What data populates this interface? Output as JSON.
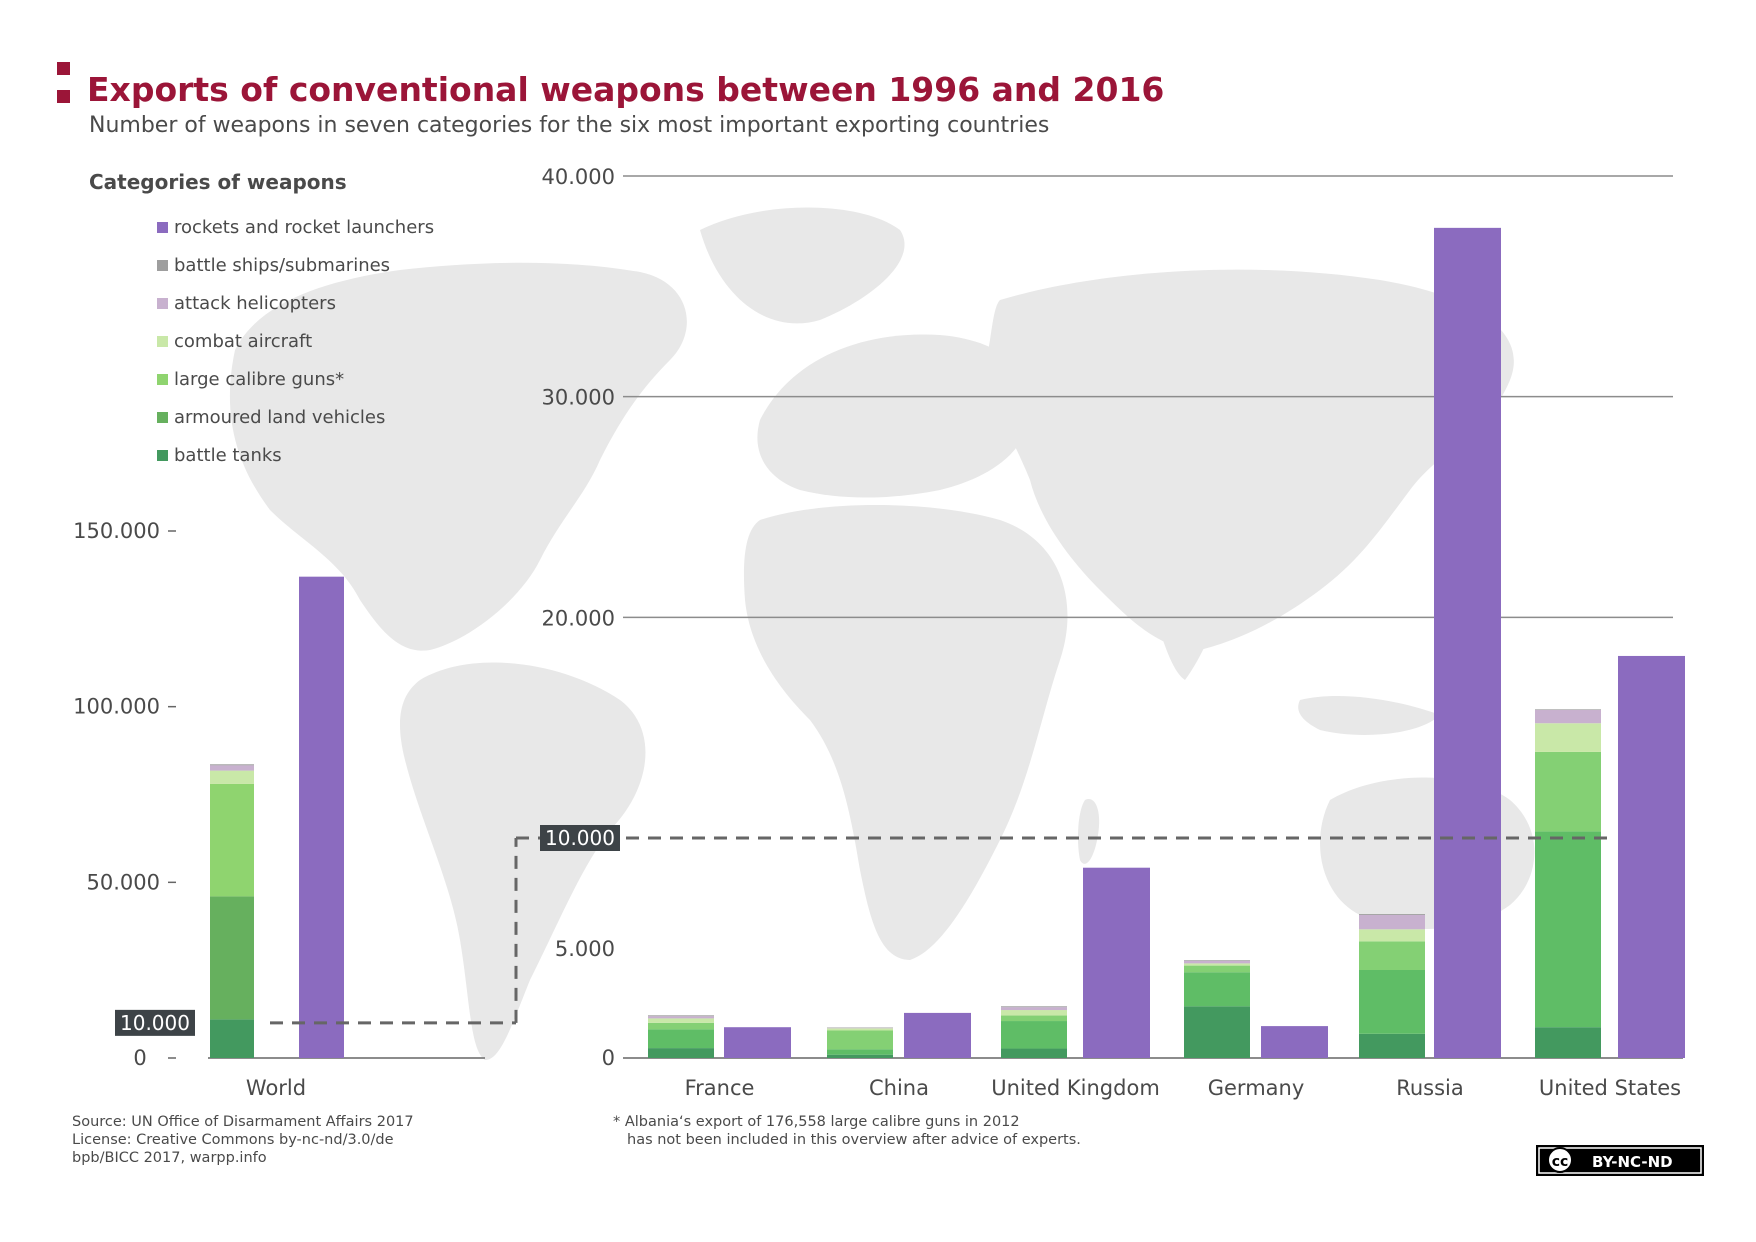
{
  "title": "Exports of conventional weapons between 1996 and 2016",
  "subtitle": "Number of weapons in seven categories for the six most important exporting countries",
  "legend_title": "Categories of weapons",
  "source_lines": [
    "Source: UN Office of Disarmament Affairs 2017",
    "License: Creative Commons by-nc-nd/3.0/de",
    "bpb/BICC 2017, warpp.info"
  ],
  "footnote_lines": [
    "* Albania‘s export of 176,558 large calibre guns in 2012",
    "has not been included in this overview after advice of experts."
  ],
  "license_badge": {
    "cc": "cc",
    "text": "BY-NC-ND"
  },
  "colors": {
    "title": "#9b1538",
    "map": "#e8e8e8",
    "highlight_box": "#3d4347"
  },
  "chart_data": [
    {
      "type": "bar",
      "stacked": true,
      "categories": [
        "World"
      ],
      "ylim": [
        0,
        150000
      ],
      "y_ticks": [
        0,
        50000,
        100000,
        150000
      ],
      "y_tick_labels": [
        "0",
        "50.000",
        "100.000",
        "150.000"
      ],
      "highlight_value": 10000,
      "highlight_label": "10.000",
      "grid": false,
      "legend": "top-left",
      "series": [
        {
          "name": "battle tanks",
          "color": "#43995f",
          "stack": "green",
          "values": [
            11000
          ]
        },
        {
          "name": "armoured land vehicles",
          "color": "#66b05e",
          "stack": "green",
          "values": [
            35000
          ]
        },
        {
          "name": "large calibre guns*",
          "color": "#8fd46f",
          "stack": "green",
          "values": [
            32000
          ]
        },
        {
          "name": "combat aircraft",
          "color": "#c9e8a8",
          "stack": "green",
          "values": [
            3800
          ]
        },
        {
          "name": "attack helicopters",
          "color": "#c8b1cf",
          "stack": "green",
          "values": [
            1500
          ]
        },
        {
          "name": "battle ships/submarines",
          "color": "#9e9e9e",
          "stack": "green",
          "values": [
            300
          ]
        },
        {
          "name": "rockets and rocket launchers",
          "color": "#8b6bbf",
          "stack": "purple",
          "values": [
            137000
          ]
        }
      ]
    },
    {
      "type": "bar",
      "stacked": true,
      "categories": [
        "France",
        "China",
        "United Kingdom",
        "Germany",
        "Russia",
        "United States"
      ],
      "ylim": [
        0,
        40000
      ],
      "y_ticks": [
        0,
        5000,
        10000,
        20000,
        30000,
        40000
      ],
      "y_tick_labels": [
        "0",
        "5.000",
        "10.000",
        "20.000",
        "30.000",
        "40.000"
      ],
      "highlight_value": 10000,
      "grid": true,
      "series": [
        {
          "name": "battle tanks",
          "color": "#43995f",
          "stack": "green",
          "values": [
            450,
            150,
            430,
            2350,
            1100,
            1400
          ]
        },
        {
          "name": "armoured land vehicles",
          "color": "#5fbd66",
          "stack": "green",
          "values": [
            850,
            250,
            1250,
            1550,
            2900,
            8900
          ]
        },
        {
          "name": "large calibre guns*",
          "color": "#84d074",
          "stack": "green",
          "values": [
            300,
            850,
            250,
            300,
            1300,
            3600
          ]
        },
        {
          "name": "combat aircraft",
          "color": "#c9e8a8",
          "stack": "green",
          "values": [
            200,
            100,
            250,
            100,
            550,
            1300
          ]
        },
        {
          "name": "attack helicopters",
          "color": "#c8b1cf",
          "stack": "green",
          "values": [
            100,
            20,
            130,
            120,
            650,
            600
          ]
        },
        {
          "name": "battle ships/submarines",
          "color": "#9e9e9e",
          "stack": "green",
          "values": [
            40,
            20,
            40,
            30,
            40,
            30
          ]
        },
        {
          "name": "rockets and rocket launchers",
          "color": "#8b6bbf",
          "stack": "purple",
          "values": [
            1400,
            2050,
            8650,
            1450,
            37650,
            18250
          ]
        }
      ]
    }
  ]
}
